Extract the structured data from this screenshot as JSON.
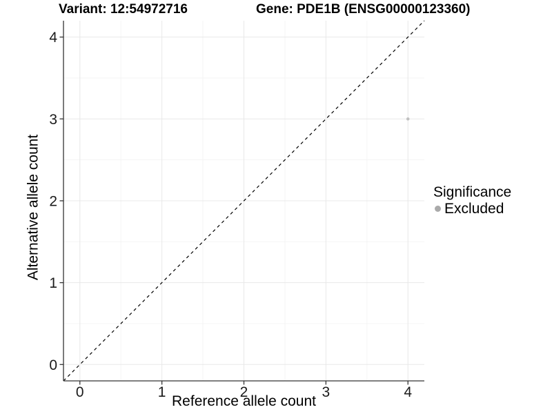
{
  "chart_data": {
    "type": "scatter",
    "title_left": "Variant: 12:54972716",
    "title_right": "Gene: PDE1B (ENSG00000123360)",
    "xlabel": "Reference allele count",
    "ylabel": "Alternative allele count",
    "xlim": [
      -0.2,
      4.2
    ],
    "ylim": [
      -0.2,
      4.2
    ],
    "x_ticks": [
      0,
      1,
      2,
      3,
      4
    ],
    "y_ticks": [
      0,
      1,
      2,
      3,
      4
    ],
    "x_minor_ticks": [
      0.5,
      1.5,
      2.5,
      3.5
    ],
    "y_minor_ticks": [
      0.5,
      1.5,
      2.5,
      3.5
    ],
    "grid": "major+minor",
    "points": [
      {
        "x": 4,
        "y": 3,
        "significance": "Excluded"
      }
    ],
    "reference_line": {
      "type": "identity y=x",
      "style": "dashed",
      "color": "#000000"
    },
    "legend": {
      "title": "Significance",
      "position": "right",
      "items": [
        {
          "label": "Excluded",
          "color": "#aaaaaa"
        }
      ]
    },
    "colors": {
      "point": "#c0c0c0",
      "major_grid": "#e8e8e8",
      "minor_grid": "#f4f4f4",
      "axis": "#333333",
      "tick_text": "#1a1a1a",
      "background": "#ffffff"
    }
  }
}
